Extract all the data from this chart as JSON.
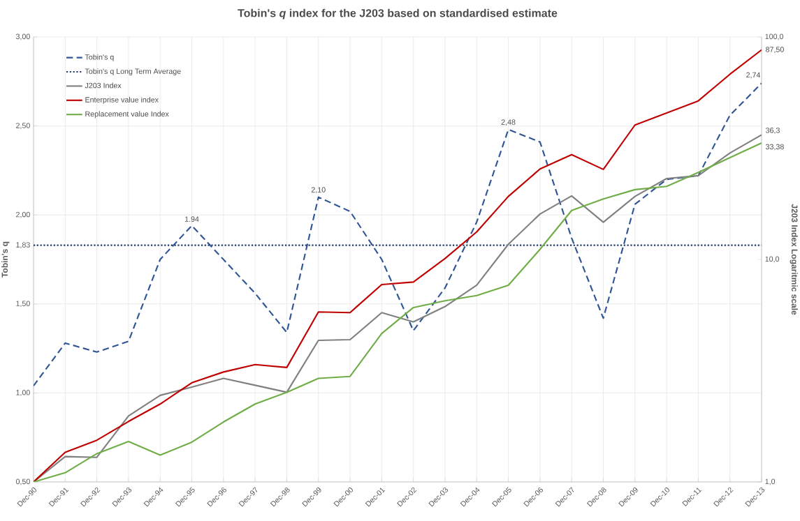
{
  "chart_data": {
    "type": "line",
    "title": "Tobin's *q* index for the J203 based on standardised  estimate",
    "ylabel": "Tobin's q",
    "y2label": "J203 Index Logaritmic scale",
    "categories": [
      "Dec-90",
      "Dec-91",
      "Dec-92",
      "Dec-93",
      "Dec-94",
      "Dec-95",
      "Dec-96",
      "Dec-97",
      "Dec-98",
      "Dec-99",
      "Dec-00",
      "Dec-01",
      "Dec-02",
      "Dec-03",
      "Dec-04",
      "Dec-05",
      "Dec-06",
      "Dec-07",
      "Dec-08",
      "Dec-09",
      "Dec-10",
      "Dec-11",
      "Dec-12",
      "Dec-13"
    ],
    "ylim": [
      0.5,
      3.0
    ],
    "yticks": [
      {
        "value": 0.5,
        "label": "0,50"
      },
      {
        "value": 1.0,
        "label": "1,00"
      },
      {
        "value": 1.5,
        "label": "1,50"
      },
      {
        "value": 1.83,
        "label": "1,83"
      },
      {
        "value": 2.0,
        "label": "2,00"
      },
      {
        "value": 2.5,
        "label": "2,50"
      },
      {
        "value": 3.0,
        "label": "3,00"
      }
    ],
    "y2lim": [
      1,
      100
    ],
    "y2ticks": [
      {
        "value": 1,
        "label": "1,0"
      },
      {
        "value": 10,
        "label": "10,0"
      },
      {
        "value": 100,
        "label": "100,0"
      }
    ],
    "log": "y2",
    "grid": true,
    "legend": "top left",
    "series": [
      {
        "name": "Tobin's q",
        "color": "#2f5597",
        "line_style": "dashed",
        "values": [
          1.04,
          1.28,
          1.23,
          1.29,
          1.75,
          1.94,
          1.75,
          1.56,
          1.34,
          2.1,
          2.02,
          1.75,
          1.35,
          1.59,
          1.96,
          2.48,
          2.41,
          1.87,
          1.42,
          2.06,
          2.2,
          2.22,
          2.56,
          2.74
        ],
        "value_labels": [
          null,
          null,
          null,
          null,
          null,
          "1.94",
          null,
          null,
          null,
          "2,10",
          null,
          null,
          null,
          null,
          null,
          "2,48",
          null,
          null,
          null,
          null,
          null,
          null,
          null,
          "2,74"
        ]
      },
      {
        "name": "Tobin's q Long Term Average",
        "color": "#1f3864",
        "line_style": "dotted",
        "values": [
          1.83,
          1.83,
          1.83,
          1.83,
          1.83,
          1.83,
          1.83,
          1.83,
          1.83,
          1.83,
          1.83,
          1.83,
          1.83,
          1.83,
          1.83,
          1.83,
          1.83,
          1.83,
          1.83,
          1.83,
          1.83,
          1.83,
          1.83,
          1.83
        ]
      },
      {
        "name": "J203 Index",
        "color": "#808080",
        "axis": "y2",
        "values": [
          1.0,
          1.3,
          1.29,
          1.98,
          2.45,
          2.67,
          2.92,
          2.72,
          2.53,
          4.33,
          4.36,
          5.77,
          5.24,
          6.14,
          7.66,
          11.7,
          16.0,
          19.3,
          14.7,
          19.2,
          23.1,
          23.8,
          30.1,
          36.3
        ],
        "value_labels": [
          null,
          null,
          null,
          null,
          null,
          null,
          null,
          null,
          null,
          null,
          null,
          null,
          null,
          null,
          null,
          null,
          null,
          null,
          null,
          null,
          null,
          null,
          null,
          "36,3"
        ]
      },
      {
        "name": "Enterprise value index",
        "color": "#c00000",
        "axis": "y2",
        "values": [
          1.0,
          1.36,
          1.54,
          1.87,
          2.24,
          2.79,
          3.12,
          3.37,
          3.27,
          5.81,
          5.77,
          7.71,
          7.92,
          10.1,
          13.3,
          19.2,
          25.5,
          29.6,
          25.4,
          40.2,
          45.5,
          51.6,
          68.0,
          87.5
        ],
        "value_labels": [
          null,
          null,
          null,
          null,
          null,
          null,
          null,
          null,
          null,
          null,
          null,
          null,
          null,
          null,
          null,
          null,
          null,
          null,
          null,
          null,
          null,
          null,
          null,
          "87,50"
        ]
      },
      {
        "name": "Replacement value Index",
        "color": "#70ad47",
        "axis": "y2",
        "values": [
          1.0,
          1.1,
          1.34,
          1.52,
          1.32,
          1.51,
          1.86,
          2.24,
          2.53,
          2.92,
          2.98,
          4.65,
          6.08,
          6.52,
          6.88,
          7.66,
          11.1,
          16.6,
          18.7,
          20.6,
          21.3,
          24.6,
          28.7,
          33.38
        ],
        "value_labels": [
          null,
          null,
          null,
          null,
          null,
          null,
          null,
          null,
          null,
          null,
          null,
          null,
          null,
          null,
          null,
          null,
          null,
          null,
          null,
          null,
          null,
          null,
          null,
          "33,38"
        ]
      }
    ]
  }
}
